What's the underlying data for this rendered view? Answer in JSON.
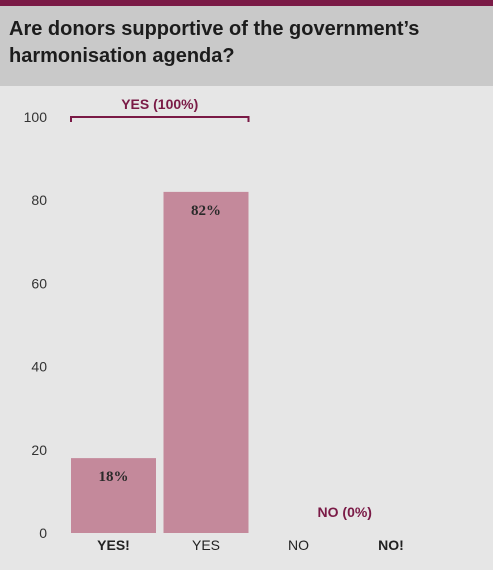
{
  "title": "Are donors supportive of the government’s harmonisation agenda?",
  "colors": {
    "bar": "#c4899b",
    "accent": "#7a1a46",
    "title_band": "#c9c9c9",
    "background": "#e6e6e6"
  },
  "chart_data": {
    "type": "bar",
    "title": "Are donors supportive of the government’s harmonisation agenda?",
    "categories": [
      "YES!",
      "YES",
      "NO",
      "NO!"
    ],
    "category_bold": [
      true,
      false,
      false,
      true
    ],
    "values": [
      18,
      82,
      0,
      0
    ],
    "data_labels": [
      "18%",
      "82%",
      "",
      ""
    ],
    "ylim": [
      0,
      100
    ],
    "yticks": [
      0,
      20,
      40,
      60,
      80,
      100
    ],
    "grid": false,
    "annotations": [
      {
        "text": "YES (100%)",
        "type": "bracket",
        "spans": [
          "YES!",
          "YES"
        ],
        "y": 100
      },
      {
        "text": "NO (0%)",
        "type": "label",
        "spans": [
          "NO",
          "NO!"
        ],
        "y": 0
      }
    ]
  }
}
